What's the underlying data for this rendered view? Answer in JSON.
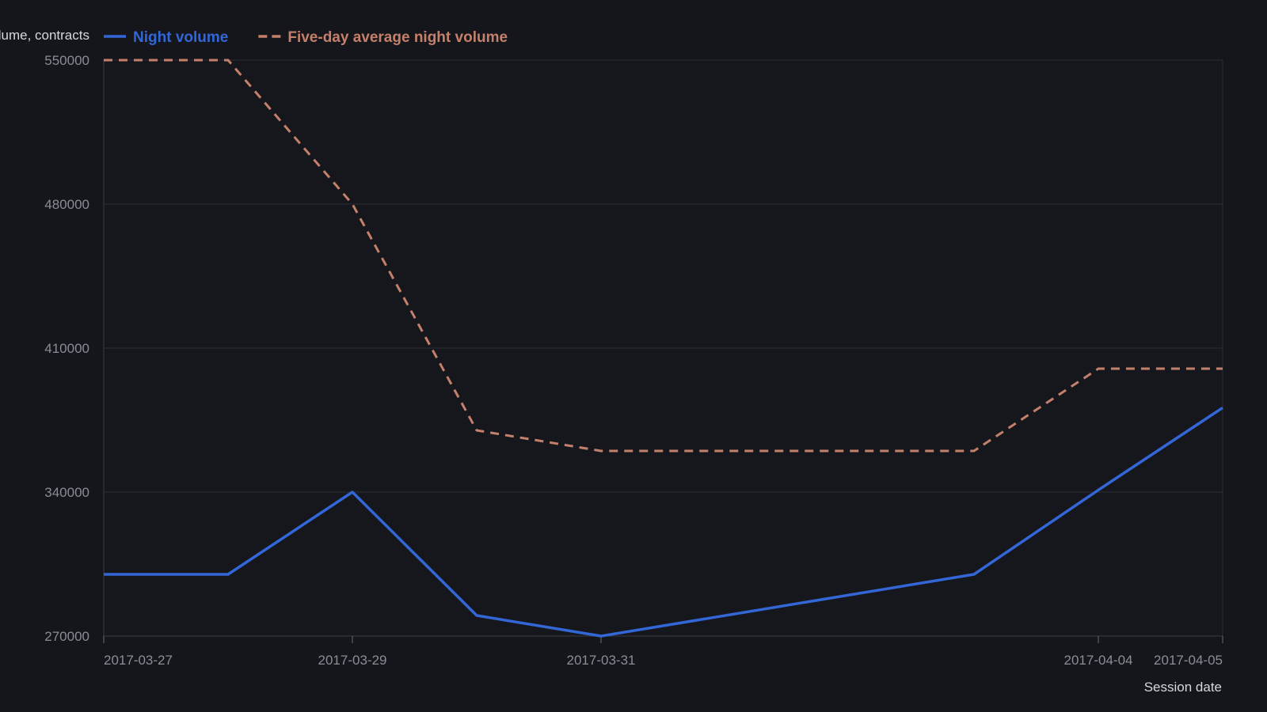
{
  "chart_data": {
    "type": "line",
    "ylabel": "Night volume, contracts",
    "xlabel": "Session date",
    "ylim": [
      270000,
      550000
    ],
    "yticks": [
      270000,
      340000,
      410000,
      480000,
      550000
    ],
    "x_ticks": [
      "2017-03-27",
      "2017-03-29",
      "2017-03-31",
      "2017-04-04",
      "2017-04-05"
    ],
    "x": [
      "2017-03-27",
      "2017-03-28",
      "2017-03-29",
      "2017-03-30",
      "2017-03-31",
      "2017-04-03",
      "2017-04-04",
      "2017-04-05"
    ],
    "series": [
      {
        "name": "Night volume",
        "color": "#3366d6",
        "style": "solid",
        "values": [
          300000,
          300000,
          340000,
          280000,
          270000,
          300000,
          341000,
          381000
        ]
      },
      {
        "name": "Five-day average night volume",
        "color": "#c4806a",
        "style": "dashed",
        "values": [
          550000,
          550000,
          480000,
          370000,
          360000,
          360000,
          400000,
          400000
        ]
      }
    ],
    "grid": true,
    "legend_position": "top-left"
  }
}
